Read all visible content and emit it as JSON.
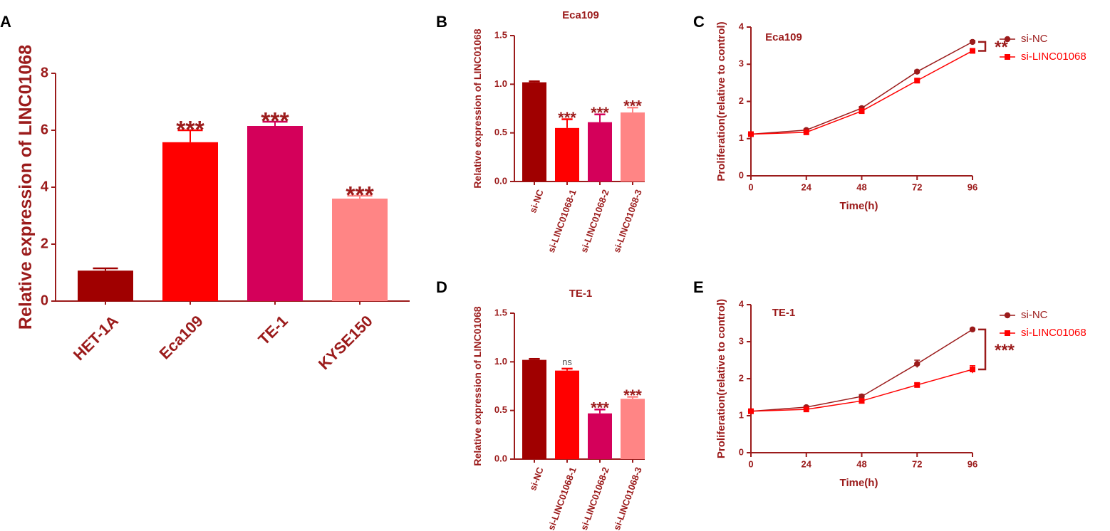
{
  "colors": {
    "axis": "#9b1b1b",
    "title": "#9b1b1b",
    "dark_red": "#a00000",
    "red": "#ff0000",
    "magenta": "#d4005a",
    "pink": "#ff8585",
    "line_nc": "#9b1b1b",
    "line_si": "#ff0000"
  },
  "chart_data": [
    {
      "id": "A",
      "panel_label": "A",
      "type": "bar",
      "title": "",
      "xlabel": "",
      "ylabel": "Relative expression of LINC01068",
      "ylim": [
        0,
        8
      ],
      "yticks": [
        0,
        2,
        4,
        6,
        8
      ],
      "categories": [
        "HET-1A",
        "Eca109",
        "TE-1",
        "KYSE150"
      ],
      "values": [
        1.07,
        5.58,
        6.15,
        3.6
      ],
      "errors": [
        0.08,
        0.42,
        0.15,
        0.1
      ],
      "annotations": [
        "",
        "***",
        "***",
        "***"
      ],
      "bar_colors": [
        "#a00000",
        "#ff0000",
        "#d4005a",
        "#ff8585"
      ]
    },
    {
      "id": "B",
      "panel_label": "B",
      "type": "bar",
      "title": "Eca109",
      "xlabel": "",
      "ylabel": "Relative expression of LINC01068",
      "ylim": [
        0,
        1.5
      ],
      "yticks": [
        "0.0",
        "0.5",
        "1.0",
        "1.5"
      ],
      "categories": [
        "si-NC",
        "si-LINC01068-1",
        "si-LINC01068-2",
        "si-LINC01068-3"
      ],
      "values": [
        1.02,
        0.55,
        0.61,
        0.71
      ],
      "errors": [
        0.01,
        0.09,
        0.08,
        0.05
      ],
      "annotations": [
        "",
        "***",
        "***",
        "***"
      ],
      "bar_colors": [
        "#a00000",
        "#ff0000",
        "#d4005a",
        "#ff8585"
      ]
    },
    {
      "id": "D",
      "panel_label": "D",
      "type": "bar",
      "title": "TE-1",
      "xlabel": "",
      "ylabel": "Relative expression of LINC01068",
      "ylim": [
        0,
        1.5
      ],
      "yticks": [
        "0.0",
        "0.5",
        "1.0",
        "1.5"
      ],
      "categories": [
        "si-NC",
        "si-LINC01068-1",
        "si-LINC01068-2",
        "si-LINC01068-3"
      ],
      "values": [
        1.02,
        0.91,
        0.47,
        0.62
      ],
      "errors": [
        0.01,
        0.02,
        0.04,
        0.02
      ],
      "annotations": [
        "",
        "ns",
        "***",
        "***"
      ],
      "bar_colors": [
        "#a00000",
        "#ff0000",
        "#d4005a",
        "#ff8585"
      ]
    },
    {
      "id": "C",
      "panel_label": "C",
      "type": "line",
      "title": "Eca109",
      "xlabel": "Time(h)",
      "ylabel": "Proliferation(relative to control)",
      "xlim": [
        0,
        96
      ],
      "ylim": [
        0,
        4
      ],
      "xticks": [
        0,
        24,
        48,
        72,
        96
      ],
      "yticks": [
        0,
        1,
        2,
        3,
        4
      ],
      "x": [
        0,
        24,
        48,
        72,
        96
      ],
      "series": [
        {
          "name": "si-NC",
          "marker": "circle",
          "color": "#9b1b1b",
          "values": [
            1.12,
            1.23,
            1.82,
            2.8,
            3.6
          ],
          "errors": [
            0.03,
            0.03,
            0.04,
            0.04,
            0.04
          ]
        },
        {
          "name": "si-LINC01068",
          "marker": "square",
          "color": "#ff0000",
          "values": [
            1.12,
            1.17,
            1.74,
            2.56,
            3.36
          ],
          "errors": [
            0.03,
            0.03,
            0.04,
            0.04,
            0.05
          ]
        }
      ],
      "significance": "**"
    },
    {
      "id": "E",
      "panel_label": "E",
      "type": "line",
      "title": "TE-1",
      "xlabel": "Time(h)",
      "ylabel": "Proliferation(relative to control)",
      "xlim": [
        0,
        96
      ],
      "ylim": [
        0,
        4
      ],
      "xticks": [
        0,
        24,
        48,
        72,
        96
      ],
      "yticks": [
        0,
        1,
        2,
        3,
        4
      ],
      "x": [
        0,
        24,
        48,
        72,
        96
      ],
      "series": [
        {
          "name": "si-NC",
          "marker": "circle",
          "color": "#9b1b1b",
          "values": [
            1.12,
            1.23,
            1.52,
            2.4,
            3.33
          ],
          "errors": [
            0.03,
            0.03,
            0.05,
            0.1,
            0.03
          ]
        },
        {
          "name": "si-LINC01068",
          "marker": "square",
          "color": "#ff0000",
          "values": [
            1.12,
            1.17,
            1.4,
            1.83,
            2.25
          ],
          "errors": [
            0.03,
            0.03,
            0.05,
            0.05,
            0.1
          ]
        }
      ],
      "significance": "***"
    }
  ]
}
